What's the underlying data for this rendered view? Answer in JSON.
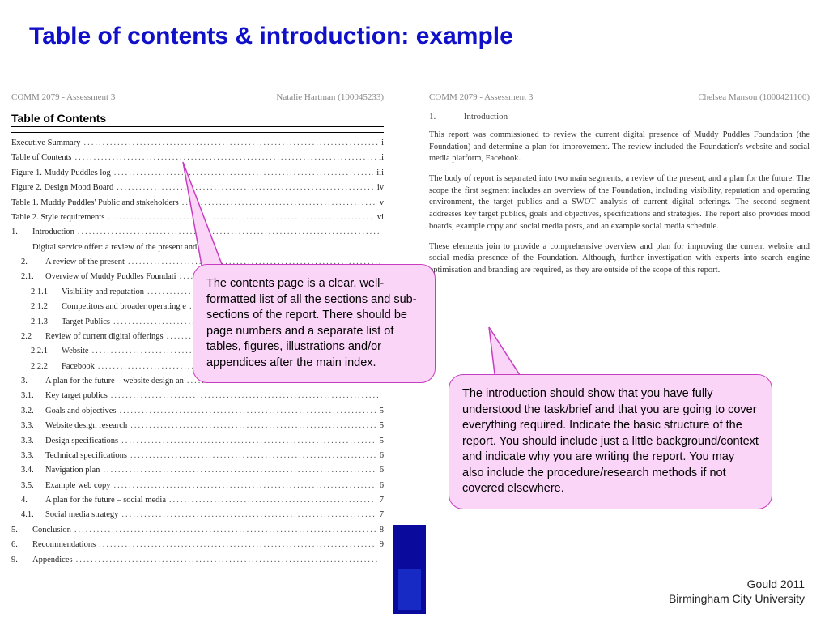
{
  "title": "Table of contents & introduction: example",
  "colors": {
    "title": "#1010c8",
    "callout_fill": "#fbd5f8",
    "callout_border": "#c83cc0",
    "blue_block": "#0a0a9c"
  },
  "left_page": {
    "header_left": "COMM 2079 - Assessment 3",
    "header_right": "Natalie Hartman (100045233)",
    "toc_title": "Table of Contents",
    "pre_items": [
      {
        "label": "Executive Summary",
        "page": "i"
      },
      {
        "label": "Table of Contents",
        "page": "ii"
      },
      {
        "label": "Figure 1. Muddy Puddles log",
        "page": "iii"
      },
      {
        "label": "Figure 2. Design Mood Board",
        "page": "iv"
      },
      {
        "label": "Table 1. Muddy Puddles' Public and stakeholders",
        "page": "v"
      },
      {
        "label": "Table 2. Style requirements",
        "page": "vi"
      }
    ],
    "items": [
      {
        "num": "1.",
        "label": "Introduction",
        "page": "",
        "lvl": 0
      },
      {
        "num": "",
        "label": "Digital service offer: a review of the present and",
        "page": "",
        "lvl": 0,
        "no_leader": true
      },
      {
        "num": "2.",
        "label": "A review of the present",
        "page": "",
        "lvl": 1
      },
      {
        "num": "2.1.",
        "label": "Overview of Muddy Puddles Foundati",
        "page": "",
        "lvl": 1
      },
      {
        "num": "2.1.1",
        "label": "Visibility and reputation",
        "page": "",
        "lvl": 2
      },
      {
        "num": "2.1.2",
        "label": "Competitors and broader operating e",
        "page": "",
        "lvl": 2
      },
      {
        "num": "2.1.3",
        "label": "Target Publics",
        "page": "",
        "lvl": 2
      },
      {
        "num": "2.2",
        "label": "Review of current digital offerings",
        "page": "",
        "lvl": 1
      },
      {
        "num": "2.2.1",
        "label": "Website",
        "page": "",
        "lvl": 2
      },
      {
        "num": "2.2.2",
        "label": "Facebook",
        "page": "",
        "lvl": 2
      },
      {
        "num": "3.",
        "label": "A plan for the future – website design an",
        "page": "",
        "lvl": 1
      },
      {
        "num": "3.1.",
        "label": "Key target publics",
        "page": "",
        "lvl": 1
      },
      {
        "num": "3.2.",
        "label": "Goals and objectives",
        "page": "5",
        "lvl": 1
      },
      {
        "num": "3.3.",
        "label": "Website design research",
        "page": "5",
        "lvl": 1
      },
      {
        "num": "3.3.",
        "label": "Design specifications",
        "page": "5",
        "lvl": 1
      },
      {
        "num": "3.3.",
        "label": "Technical specifications",
        "page": "6",
        "lvl": 1
      },
      {
        "num": "3.4.",
        "label": "Navigation plan",
        "page": "6",
        "lvl": 1
      },
      {
        "num": "3.5.",
        "label": "Example web copy",
        "page": "6",
        "lvl": 1
      },
      {
        "num": "4.",
        "label": "A plan for the future – social media",
        "page": "7",
        "lvl": 1
      },
      {
        "num": "4.1.",
        "label": "Social media strategy",
        "page": "7",
        "lvl": 1
      },
      {
        "num": "5.",
        "label": "Conclusion",
        "page": "8",
        "lvl": 0
      },
      {
        "num": "6.",
        "label": "Recommendations",
        "page": "9",
        "lvl": 0
      },
      {
        "num": "9.",
        "label": "Appendices",
        "page": "",
        "lvl": 0
      }
    ]
  },
  "right_page": {
    "header_left": "COMM 2079 - Assessment 3",
    "header_right": "Chelsea Manson (1000421100)",
    "heading_num": "1.",
    "heading_label": "Introduction",
    "paragraphs": [
      "This report was commissioned to review the current digital presence of Muddy Puddles Foundation (the Foundation) and determine a plan for improvement. The review included the Foundation's website and social media platform, Facebook.",
      "The body of report is separated into two main segments, a review of the present, and a plan for the future. The scope the first segment includes an overview of the Foundation, including visibility, reputation and operating environment, the target publics and a SWOT analysis of current digital offerings. The second segment addresses key target publics, goals and objectives, specifications and strategies. The report also provides mood boards, example copy and social media posts, and an example social media schedule.",
      "These elements join to provide a comprehensive overview and plan for improving the current website and social media presence of the Foundation. Although, further investigation with experts into search engine optimisation and branding are required, as they are outside of the scope of this report."
    ]
  },
  "callouts": {
    "c1": "The contents page is a clear, well-formatted list of all the sections and sub-sections of the report. There should be page numbers and a separate list of tables, figures, illustrations and/or appendices after the main index.",
    "c2": "The introduction should show that you have fully understood the task/brief and that you are going to cover everything required. Indicate the basic structure of the report. You should include just a little background/context and indicate why you are writing the report. You may also include the procedure/research methods if not covered elsewhere."
  },
  "footer": {
    "line1": "Gould 2011",
    "line2": "Birmingham City University"
  }
}
